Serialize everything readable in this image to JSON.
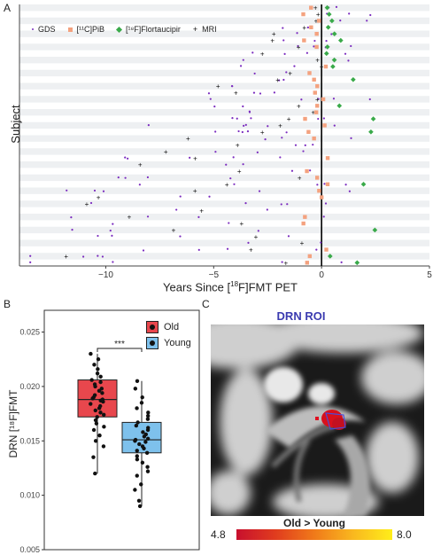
{
  "panels": {
    "a": {
      "letter": "A",
      "ylabel": "Subject",
      "xlabel_pre": "Years Since [",
      "xlabel_sup": "18",
      "xlabel_post": "F]FMT PET",
      "legend": [
        {
          "label": "GDS",
          "color": "#7b2cbf",
          "marker": "dot"
        },
        {
          "label": "[¹¹C]PiB",
          "color": "#f4a27f",
          "marker": "square"
        },
        {
          "label": "[¹⁸F]Flortaucipir",
          "color": "#3aaa4a",
          "marker": "diamond"
        },
        {
          "label": "MRI",
          "color": "#111111",
          "marker": "cross"
        }
      ]
    },
    "b": {
      "letter": "B",
      "ylabel": "DRN [¹⁸F]FMT",
      "significance": "***",
      "legend": [
        {
          "label": "Old",
          "color": "#e8474d"
        },
        {
          "label": "Young",
          "color": "#7ec1ec"
        }
      ]
    },
    "c": {
      "letter": "C",
      "title": "DRN ROI",
      "colorbar_title": "Old > Young",
      "colorbar_min": "4.8",
      "colorbar_max": "8.0"
    }
  },
  "chart_data": [
    {
      "type": "scatter",
      "panel": "A",
      "xlabel": "Years Since [18F]FMT PET",
      "ylabel": "Subject",
      "xlim": [
        -14,
        5
      ],
      "xticks": [
        -10,
        -5,
        0,
        5
      ],
      "subjects": 40,
      "grid": true,
      "legend_position": "top-left",
      "series": [
        {
          "name": "GDS",
          "marker": "dot",
          "color": "#7b2cbf"
        },
        {
          "name": "[11C]PiB",
          "marker": "square",
          "color": "#f4a27f"
        },
        {
          "name": "[18F]Flortaucipir",
          "marker": "diamond",
          "color": "#3aaa4a"
        },
        {
          "name": "MRI",
          "marker": "cross",
          "color": "#111111"
        }
      ]
    },
    {
      "type": "box",
      "panel": "B",
      "ylabel": "DRN [18F]FMT",
      "ylim": [
        0.005,
        0.027
      ],
      "yticks": [
        "0.005",
        "0.010",
        "0.015",
        "0.020",
        "0.025"
      ],
      "legend_position": "top-right",
      "groups": [
        {
          "name": "Old",
          "color": "#e8474d",
          "min": 0.012,
          "q1": 0.0172,
          "median": 0.0188,
          "q3": 0.0206,
          "max": 0.023,
          "points": [
            0.012,
            0.0135,
            0.0145,
            0.015,
            0.0155,
            0.016,
            0.0163,
            0.0166,
            0.0169,
            0.0172,
            0.0174,
            0.0176,
            0.0178,
            0.018,
            0.0182,
            0.0184,
            0.0186,
            0.0187,
            0.0188,
            0.0189,
            0.019,
            0.0192,
            0.0194,
            0.0196,
            0.0198,
            0.02,
            0.0202,
            0.0204,
            0.0206,
            0.0209,
            0.0212,
            0.0216,
            0.022,
            0.0225,
            0.023
          ]
        },
        {
          "name": "Young",
          "color": "#7ec1ec",
          "min": 0.009,
          "q1": 0.0139,
          "median": 0.0151,
          "q3": 0.0167,
          "max": 0.0205,
          "points": [
            0.009,
            0.0095,
            0.0105,
            0.011,
            0.0118,
            0.0122,
            0.0126,
            0.013,
            0.0133,
            0.0136,
            0.0139,
            0.0141,
            0.0143,
            0.0145,
            0.0147,
            0.0149,
            0.015,
            0.0151,
            0.0152,
            0.0154,
            0.0156,
            0.0158,
            0.016,
            0.0162,
            0.0164,
            0.0167,
            0.017,
            0.0173,
            0.0176,
            0.018,
            0.0185,
            0.019,
            0.0198,
            0.0205
          ]
        }
      ]
    }
  ]
}
